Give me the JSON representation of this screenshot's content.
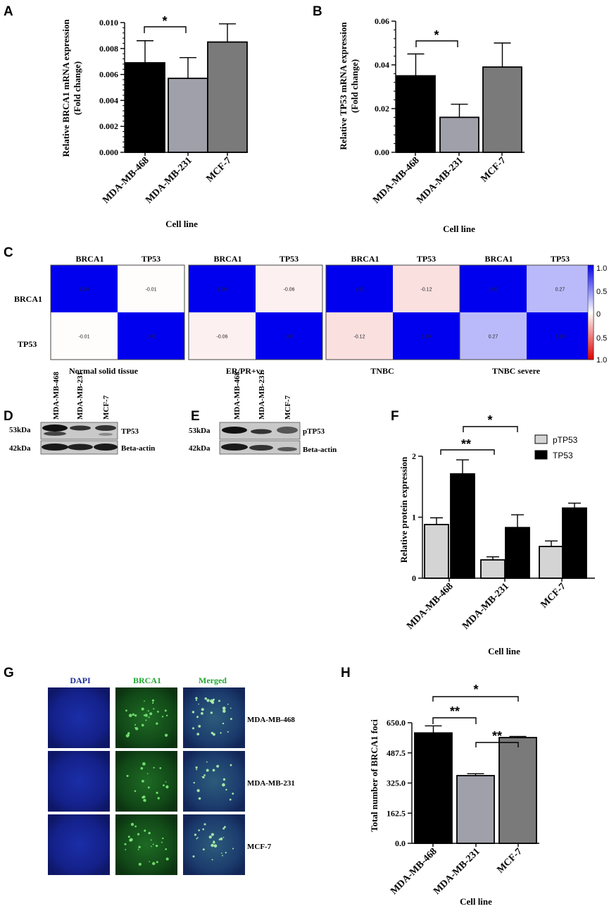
{
  "panels": {
    "A": {
      "letter": "A",
      "ylabel1": "Relative BRCA1 mRNA expression",
      "ylabel2": "(Fold change)",
      "xlabel": "Cell line",
      "sig": "*"
    },
    "B": {
      "letter": "B",
      "ylabel1": "Relative TP53 mRNA expression",
      "ylabel2": "(Fold change)",
      "xlabel": "Cell line",
      "sig": "*"
    },
    "C": {
      "letter": "C",
      "genes": [
        "BRCA1",
        "TP53"
      ],
      "colorbar_ticks": [
        "1.0",
        "0.5",
        "0",
        "0.5",
        "1.0"
      ]
    },
    "D": {
      "letter": "D",
      "lanes": [
        "MDA-MB-468",
        "MDA-MB-231",
        "MCF-7"
      ],
      "bands": [
        {
          "size": "53kDa",
          "label": "TP53"
        },
        {
          "size": "42kDa",
          "label": "Beta-actin"
        }
      ]
    },
    "E": {
      "letter": "E",
      "lanes": [
        "MDA-MB-468",
        "MDA-MB-231",
        "MCF-7"
      ],
      "bands": [
        {
          "size": "53kDa",
          "label": "pTP53"
        },
        {
          "size": "42kDa",
          "label": "Beta-actin"
        }
      ]
    },
    "F": {
      "letter": "F",
      "ylabel": "Relative protein expression",
      "xlabel": "Cell line",
      "sig1": "**",
      "sig2": "*"
    },
    "G": {
      "letter": "G",
      "columns": [
        "DAPI",
        "BRCA1",
        "Merged"
      ],
      "rows": [
        "MDA-MB-468",
        "MDA-MB-231",
        "MCF-7"
      ]
    },
    "H": {
      "letter": "H",
      "ylabel": "Total number of BRCA1 foci",
      "xlabel": "Cell line",
      "sig1": "**",
      "sig2": "**",
      "sig3": "*"
    }
  },
  "colors": {
    "bar_black": "#000000",
    "bar_light": "#a0a0aa",
    "bar_mid": "#7a7a7a",
    "heat_pos": "#0000ee",
    "heat_neg": "#dd0000",
    "dapi": "#1a2b9a",
    "brca1": "#1fa832"
  },
  "chart_data": [
    {
      "panel": "A",
      "type": "bar",
      "categories": [
        "MDA-MB-468",
        "MDA-MB-231",
        "MCF-7"
      ],
      "values": [
        0.0069,
        0.0057,
        0.0085
      ],
      "errors": [
        0.0017,
        0.0016,
        0.0014
      ],
      "ticks": [
        "0.000",
        "0.002",
        "0.004",
        "0.006",
        "0.008",
        "0.010"
      ],
      "ylim": [
        0,
        0.01
      ],
      "ylabel": "Relative BRCA1 mRNA expression (Fold change)",
      "xlabel": "Cell line"
    },
    {
      "panel": "B",
      "type": "bar",
      "categories": [
        "MDA-MB-468",
        "MDA-MB-231",
        "MCF-7"
      ],
      "values": [
        0.035,
        0.016,
        0.039
      ],
      "errors": [
        0.01,
        0.006,
        0.011
      ],
      "ticks": [
        "0.00",
        "0.02",
        "0.04",
        "0.06"
      ],
      "ylim": [
        0,
        0.06
      ],
      "ylabel": "Relative TP53 mRNA expression (Fold change)",
      "xlabel": "Cell line"
    },
    {
      "panel": "C",
      "type": "heatmap",
      "groups": [
        {
          "name": "Normal solid tissue",
          "matrix": [
            [
              "1.00",
              "-0.01"
            ],
            [
              "-0.01",
              "1.00"
            ]
          ],
          "r": -0.01
        },
        {
          "name": "ER/PR+ve",
          "matrix": [
            [
              "1.00",
              "-0.06"
            ],
            [
              "-0.06",
              "1.00"
            ]
          ],
          "r": -0.06
        },
        {
          "name": "TNBC",
          "matrix": [
            [
              "1.00",
              "-0.12"
            ],
            [
              "-0.12",
              "1.00"
            ]
          ],
          "r": -0.12
        },
        {
          "name": "TNBC severe",
          "matrix": [
            [
              "1.00",
              "0.27"
            ],
            [
              "0.27",
              "1.00"
            ]
          ],
          "r": 0.27
        }
      ]
    },
    {
      "panel": "F",
      "type": "bar",
      "categories": [
        "MDA-MB-468",
        "MDA-MB-231",
        "MCF-7"
      ],
      "series": [
        {
          "name": "pTP53",
          "values": [
            0.88,
            0.3,
            0.52
          ],
          "errors": [
            0.11,
            0.05,
            0.09
          ]
        },
        {
          "name": "TP53",
          "values": [
            1.71,
            0.83,
            1.15
          ],
          "errors": [
            0.23,
            0.21,
            0.08
          ]
        }
      ],
      "ticks": [
        "0",
        "1",
        "2"
      ],
      "ylim": [
        0,
        2
      ],
      "ylabel": "Relative protein expression",
      "xlabel": "Cell line"
    },
    {
      "panel": "H",
      "type": "bar",
      "categories": [
        "MDA-MB-468",
        "MDA-MB-231",
        "MCF-7"
      ],
      "values": [
        595,
        365,
        570
      ],
      "errors": [
        38,
        10,
        6
      ],
      "ticks": [
        "0.0",
        "162.5",
        "325.0",
        "487.5",
        "650.0"
      ],
      "ylim": [
        0,
        650
      ],
      "ylabel": "Total number of BRCA1 foci",
      "xlabel": "Cell line"
    }
  ]
}
